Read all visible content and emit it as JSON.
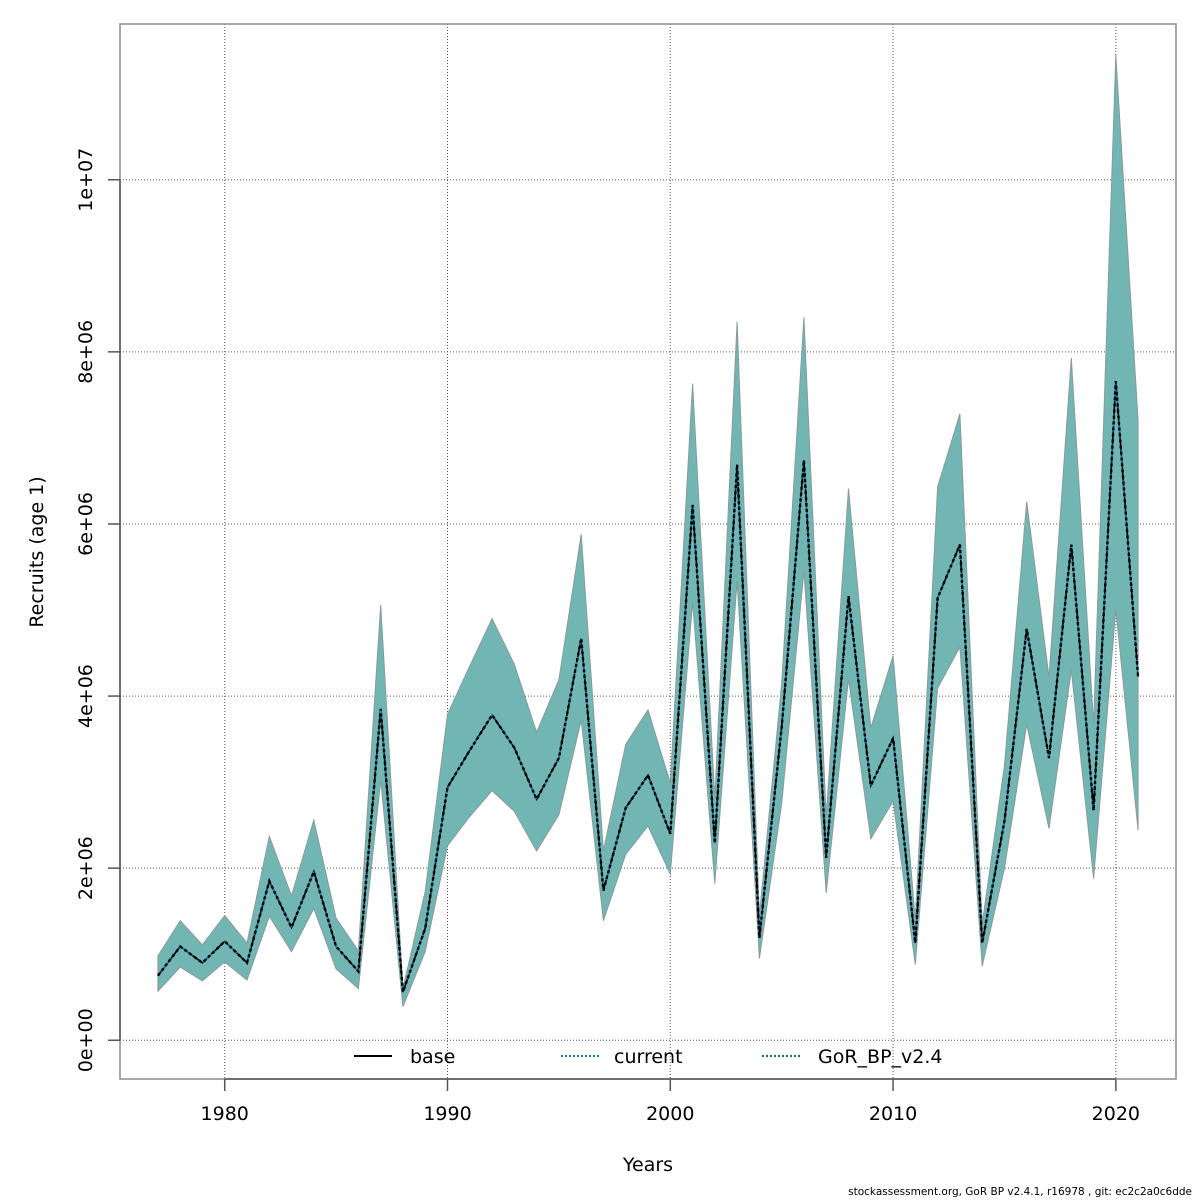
{
  "chart_data": {
    "type": "area",
    "title": "",
    "xlabel": "Years",
    "ylabel": "Recruits (age 1)",
    "xlim": [
      1975.3,
      2022.7
    ],
    "ylim": [
      -450000,
      11810000
    ],
    "x_ticks": [
      1980,
      1990,
      2000,
      2010,
      2020
    ],
    "x_tick_labels": [
      "1980",
      "1990",
      "2000",
      "2010",
      "2020"
    ],
    "y_ticks": [
      0,
      2000000,
      4000000,
      6000000,
      8000000,
      10000000
    ],
    "y_tick_labels": [
      "0e+00",
      "2e+06",
      "4e+06",
      "6e+06",
      "8e+06",
      "1e+07"
    ],
    "grid": true,
    "legend_position": "bottom-center",
    "fill_color": "#72b6b4",
    "x": [
      1977,
      1978,
      1979,
      1980,
      1981,
      1982,
      1983,
      1984,
      1985,
      1986,
      1987,
      1988,
      1989,
      1990,
      1991,
      1992,
      1993,
      1994,
      1995,
      1996,
      1997,
      1998,
      1999,
      2000,
      2001,
      2002,
      2003,
      2004,
      2005,
      2006,
      2007,
      2008,
      2009,
      2010,
      2011,
      2012,
      2013,
      2014,
      2015,
      2016,
      2017,
      2018,
      2019,
      2020,
      2021
    ],
    "series": [
      {
        "name": "base",
        "color": "#000000",
        "style": "solid",
        "values": [
          750000,
          1090000,
          900000,
          1150000,
          900000,
          1850000,
          1310000,
          1960000,
          1090000,
          800000,
          3850000,
          560000,
          1300000,
          2940000,
          3370000,
          3780000,
          3400000,
          2800000,
          3280000,
          4670000,
          1740000,
          2700000,
          3080000,
          2400000,
          6220000,
          2290000,
          6690000,
          1190000,
          3640000,
          6740000,
          2120000,
          5160000,
          2960000,
          3510000,
          1130000,
          5140000,
          5760000,
          1130000,
          2550000,
          4780000,
          3280000,
          5760000,
          2670000,
          7660000,
          4220000
        ],
        "lower": [
          570000,
          850000,
          690000,
          910000,
          700000,
          1440000,
          1030000,
          1530000,
          830000,
          600000,
          3020000,
          390000,
          1030000,
          2260000,
          2600000,
          2900000,
          2660000,
          2200000,
          2620000,
          3720000,
          1390000,
          2160000,
          2490000,
          1930000,
          5090000,
          1820000,
          5340000,
          950000,
          2750000,
          5450000,
          1710000,
          4200000,
          2340000,
          2780000,
          880000,
          4090000,
          4570000,
          860000,
          2000000,
          3670000,
          2460000,
          4300000,
          1880000,
          5010000,
          2440000
        ],
        "upper": [
          980000,
          1390000,
          1110000,
          1450000,
          1130000,
          2370000,
          1680000,
          2560000,
          1420000,
          1040000,
          5060000,
          600000,
          1730000,
          3790000,
          4350000,
          4900000,
          4370000,
          3580000,
          4190000,
          5880000,
          2200000,
          3440000,
          3840000,
          2990000,
          7630000,
          2810000,
          8350000,
          1450000,
          4150000,
          8400000,
          2600000,
          6410000,
          3630000,
          4470000,
          1400000,
          6430000,
          7280000,
          1350000,
          3200000,
          6260000,
          4220000,
          7930000,
          3670000,
          11450000,
          7200000
        ]
      },
      {
        "name": "current",
        "color": "#1f6e99",
        "style": "dotted",
        "values_same_as": "base"
      },
      {
        "name": "GoR_BP_v2.4",
        "color": "#1a7a6a",
        "style": "dotted",
        "values_same_as": "base"
      }
    ]
  },
  "legend": [
    {
      "label": "base",
      "color": "#000000",
      "style": "solid"
    },
    {
      "label": "current",
      "color": "#2b7bb0",
      "style": "dotted"
    },
    {
      "label": "GoR_BP_v2.4",
      "color": "#1a7a6a",
      "style": "dotted"
    }
  ],
  "footer": "stockassessment.org, GoR  BP  v2.4.1, r16978 , git: ec2c2a0c6dde"
}
